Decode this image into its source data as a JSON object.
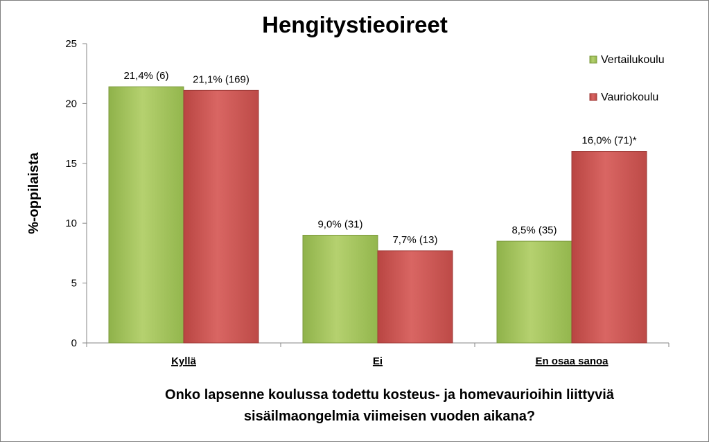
{
  "chart_data": {
    "type": "bar",
    "title": "Hengitystieoireet",
    "ylabel": "%-oppilaista",
    "xlabel_lines": [
      "Onko lapsenne koulussa todettu kosteus- ja homevaurioihin liittyviä",
      "sisäilmaongelmia viimeisen vuoden aikana?"
    ],
    "categories": [
      "Kyllä",
      "Ei",
      "En osaa sanoa"
    ],
    "ylim": [
      0,
      25
    ],
    "yticks": [
      0,
      5,
      10,
      15,
      20,
      25
    ],
    "grid": false,
    "legend_position": "top-right",
    "series": [
      {
        "name": "Vertailukoulu",
        "color": "#9bbb59",
        "values": [
          21.4,
          9.0,
          8.5
        ],
        "labels": [
          "21,4% (6)",
          "9,0% (31)",
          "8,5% (35)"
        ]
      },
      {
        "name": "Vauriokoulu",
        "color": "#c0504d",
        "values": [
          21.1,
          7.7,
          16.0
        ],
        "labels": [
          "21,1% (169)",
          "7,7% (13)",
          "16,0% (71)*"
        ]
      }
    ]
  }
}
